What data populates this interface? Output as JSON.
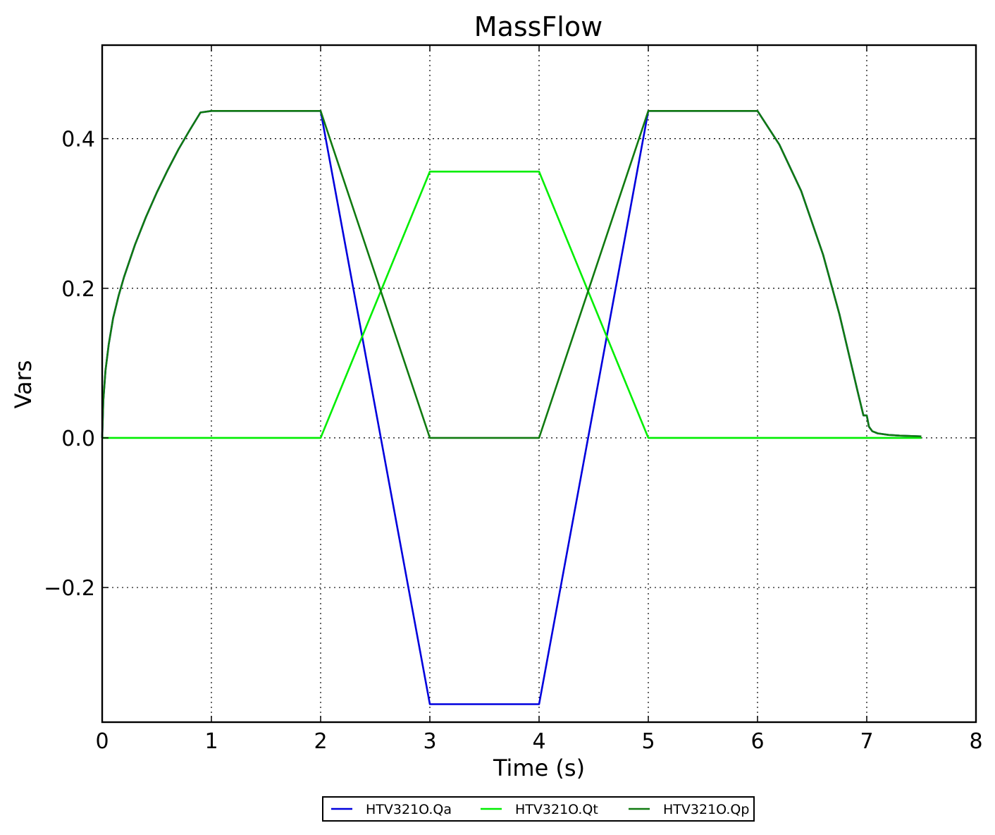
{
  "chart_data": {
    "type": "line",
    "title": "MassFlow",
    "xlabel": "Time (s)",
    "ylabel": "Vars",
    "xlim": [
      0,
      8
    ],
    "ylim": [
      -0.38,
      0.525
    ],
    "xticks": [
      0,
      1,
      2,
      3,
      4,
      5,
      6,
      7,
      8
    ],
    "yticks": [
      -0.2,
      0.0,
      0.2,
      0.4
    ],
    "xtick_labels": [
      "0",
      "1",
      "2",
      "3",
      "4",
      "5",
      "6",
      "7",
      "8"
    ],
    "ytick_labels": [
      "−0.2",
      "0.0",
      "0.2",
      "0.4"
    ],
    "grid": true,
    "legend_position": "bottom-center",
    "series": [
      {
        "name": "HTV321O.Qa",
        "color": "#0000dd",
        "x": [
          0,
          0.01,
          0.03,
          0.06,
          0.1,
          0.15,
          0.2,
          0.3,
          0.4,
          0.5,
          0.6,
          0.7,
          0.8,
          0.9,
          1.0,
          2.0,
          3.0,
          4.0,
          5.0,
          6.0,
          6.2,
          6.4,
          6.6,
          6.75,
          6.85,
          6.92,
          6.97,
          7.0,
          7.02,
          7.05,
          7.1,
          7.2,
          7.3,
          7.5
        ],
        "y": [
          0,
          0.05,
          0.09,
          0.125,
          0.16,
          0.19,
          0.215,
          0.258,
          0.295,
          0.328,
          0.358,
          0.386,
          0.411,
          0.435,
          0.437,
          0.437,
          -0.356,
          -0.356,
          0.437,
          0.437,
          0.392,
          0.33,
          0.245,
          0.165,
          0.103,
          0.06,
          0.03,
          0.03,
          0.015,
          0.009,
          0.006,
          0.004,
          0.003,
          0.002
        ]
      },
      {
        "name": "HTV321O.Qt",
        "color": "#00ee00",
        "x": [
          0,
          2.0,
          3.0,
          4.0,
          5.0,
          7.5
        ],
        "y": [
          0,
          0,
          0.356,
          0.356,
          0,
          0
        ]
      },
      {
        "name": "HTV321O.Qp",
        "color": "#107a10",
        "x": [
          0,
          0.01,
          0.03,
          0.06,
          0.1,
          0.15,
          0.2,
          0.3,
          0.4,
          0.5,
          0.6,
          0.7,
          0.8,
          0.9,
          1.0,
          2.0,
          3.0,
          4.0,
          5.0,
          6.0,
          6.2,
          6.4,
          6.6,
          6.75,
          6.85,
          6.92,
          6.97,
          7.0,
          7.02,
          7.05,
          7.1,
          7.2,
          7.3,
          7.5
        ],
        "y": [
          0,
          0.05,
          0.09,
          0.125,
          0.16,
          0.19,
          0.215,
          0.258,
          0.295,
          0.328,
          0.358,
          0.386,
          0.411,
          0.435,
          0.437,
          0.437,
          0,
          0,
          0.437,
          0.437,
          0.392,
          0.33,
          0.245,
          0.165,
          0.103,
          0.06,
          0.03,
          0.03,
          0.015,
          0.009,
          0.006,
          0.004,
          0.003,
          0.002
        ]
      }
    ]
  }
}
